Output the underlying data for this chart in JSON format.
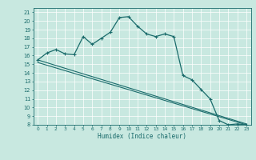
{
  "xlabel": "Humidex (Indice chaleur)",
  "xlim": [
    -0.5,
    23.5
  ],
  "ylim": [
    8,
    21.5
  ],
  "xticks": [
    0,
    1,
    2,
    3,
    4,
    5,
    6,
    7,
    8,
    9,
    10,
    11,
    12,
    13,
    14,
    15,
    16,
    17,
    18,
    19,
    20,
    21,
    22,
    23
  ],
  "yticks": [
    8,
    9,
    10,
    11,
    12,
    13,
    14,
    15,
    16,
    17,
    18,
    19,
    20,
    21
  ],
  "bg_color": "#c8e8e0",
  "line_color": "#1a6b6b",
  "grid_color": "#ffffff",
  "grid_minor_color": "#e8f8f4",
  "curve1_x": [
    0,
    1,
    2,
    3,
    4,
    5,
    6,
    7,
    8,
    9,
    10,
    11,
    12,
    13,
    14,
    15,
    16,
    17,
    18,
    19,
    20,
    21,
    22,
    23
  ],
  "curve1_y": [
    15.5,
    16.3,
    16.7,
    16.2,
    16.1,
    18.2,
    17.3,
    18.0,
    18.7,
    20.4,
    20.5,
    19.4,
    18.5,
    18.2,
    18.5,
    18.2,
    13.7,
    13.2,
    12.1,
    11.0,
    8.5,
    8.0,
    8.1,
    8.0
  ],
  "curve2_x": [
    0,
    23
  ],
  "curve2_y": [
    15.5,
    8.1
  ],
  "curve3_x": [
    0,
    23
  ],
  "curve3_y": [
    15.2,
    8.0
  ]
}
